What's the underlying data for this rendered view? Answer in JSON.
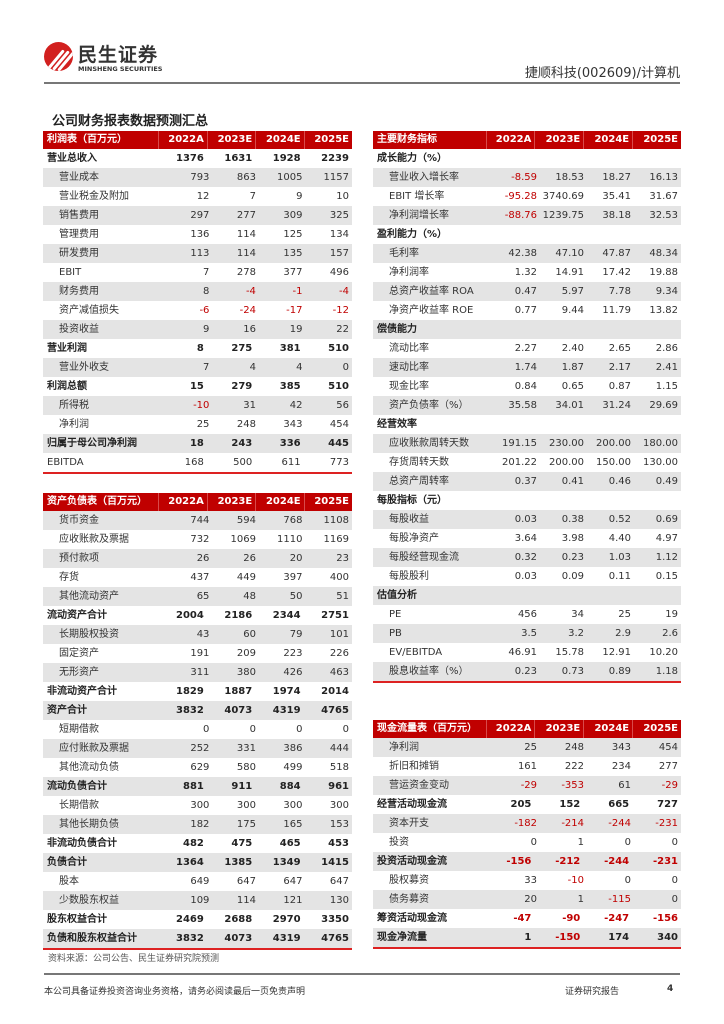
{
  "header": {
    "logo_cn": "民生证券",
    "logo_en": "MINSHENG SECURITIES",
    "stock": "捷顺科技(002609)/计算机"
  },
  "title": "公司财务报表数据预测汇总",
  "colors": {
    "accent": "#c00000",
    "stripe": "#e4e4e4",
    "negative": "#c00000"
  },
  "income": {
    "header": [
      "利润表（百万元）",
      "2022A",
      "2023E",
      "2024E",
      "2025E"
    ],
    "rows": [
      {
        "label": "营业总收入",
        "bold": true,
        "values": [
          "1376",
          "1631",
          "1928",
          "2239"
        ]
      },
      {
        "label": "营业成本",
        "values": [
          "793",
          "863",
          "1005",
          "1157"
        ]
      },
      {
        "label": "营业税金及附加",
        "values": [
          "12",
          "7",
          "9",
          "10"
        ]
      },
      {
        "label": "销售费用",
        "values": [
          "297",
          "277",
          "309",
          "325"
        ]
      },
      {
        "label": "管理费用",
        "values": [
          "136",
          "114",
          "125",
          "134"
        ]
      },
      {
        "label": "研发费用",
        "values": [
          "113",
          "114",
          "135",
          "157"
        ]
      },
      {
        "label": "EBIT",
        "values": [
          "7",
          "278",
          "377",
          "496"
        ]
      },
      {
        "label": "财务费用",
        "values": [
          "8",
          "-4",
          "-1",
          "-4"
        ]
      },
      {
        "label": "资产减值损失",
        "values": [
          "-6",
          "-24",
          "-17",
          "-12"
        ]
      },
      {
        "label": "投资收益",
        "values": [
          "9",
          "16",
          "19",
          "22"
        ]
      },
      {
        "label": "营业利润",
        "bold": true,
        "values": [
          "8",
          "275",
          "381",
          "510"
        ]
      },
      {
        "label": "营业外收支",
        "values": [
          "7",
          "4",
          "4",
          "0"
        ]
      },
      {
        "label": "利润总额",
        "bold": true,
        "values": [
          "15",
          "279",
          "385",
          "510"
        ]
      },
      {
        "label": "所得税",
        "values": [
          "-10",
          "31",
          "42",
          "56"
        ]
      },
      {
        "label": "净利润",
        "values": [
          "25",
          "248",
          "343",
          "454"
        ]
      },
      {
        "label": "归属于母公司净利润",
        "bold": true,
        "values": [
          "18",
          "243",
          "336",
          "445"
        ]
      },
      {
        "label": "EBITDA",
        "flat": true,
        "values": [
          "168",
          "500",
          "611",
          "773"
        ]
      }
    ]
  },
  "balance": {
    "header": [
      "资产负债表（百万元）",
      "2022A",
      "2023E",
      "2024E",
      "2025E"
    ],
    "rows": [
      {
        "label": "货币资金",
        "values": [
          "744",
          "594",
          "768",
          "1108"
        ]
      },
      {
        "label": "应收账款及票据",
        "values": [
          "732",
          "1069",
          "1110",
          "1169"
        ]
      },
      {
        "label": "预付款项",
        "values": [
          "26",
          "26",
          "20",
          "23"
        ]
      },
      {
        "label": "存货",
        "values": [
          "437",
          "449",
          "397",
          "400"
        ]
      },
      {
        "label": "其他流动资产",
        "values": [
          "65",
          "48",
          "50",
          "51"
        ]
      },
      {
        "label": "流动资产合计",
        "bold": true,
        "values": [
          "2004",
          "2186",
          "2344",
          "2751"
        ]
      },
      {
        "label": "长期股权投资",
        "values": [
          "43",
          "60",
          "79",
          "101"
        ]
      },
      {
        "label": "固定资产",
        "values": [
          "191",
          "209",
          "223",
          "226"
        ]
      },
      {
        "label": "无形资产",
        "values": [
          "311",
          "380",
          "426",
          "463"
        ]
      },
      {
        "label": "非流动资产合计",
        "bold": true,
        "values": [
          "1829",
          "1887",
          "1974",
          "2014"
        ]
      },
      {
        "label": "资产合计",
        "bold": true,
        "values": [
          "3832",
          "4073",
          "4319",
          "4765"
        ]
      },
      {
        "label": "短期借款",
        "values": [
          "0",
          "0",
          "0",
          "0"
        ]
      },
      {
        "label": "应付账款及票据",
        "values": [
          "252",
          "331",
          "386",
          "444"
        ]
      },
      {
        "label": "其他流动负债",
        "values": [
          "629",
          "580",
          "499",
          "518"
        ]
      },
      {
        "label": "流动负债合计",
        "bold": true,
        "values": [
          "881",
          "911",
          "884",
          "961"
        ]
      },
      {
        "label": "长期借款",
        "values": [
          "300",
          "300",
          "300",
          "300"
        ]
      },
      {
        "label": "其他长期负债",
        "values": [
          "182",
          "175",
          "165",
          "153"
        ]
      },
      {
        "label": "非流动负债合计",
        "bold": true,
        "values": [
          "482",
          "475",
          "465",
          "453"
        ]
      },
      {
        "label": "负债合计",
        "bold": true,
        "values": [
          "1364",
          "1385",
          "1349",
          "1415"
        ]
      },
      {
        "label": "股本",
        "values": [
          "649",
          "647",
          "647",
          "647"
        ]
      },
      {
        "label": "少数股东权益",
        "values": [
          "109",
          "114",
          "121",
          "130"
        ]
      },
      {
        "label": "股东权益合计",
        "bold": true,
        "values": [
          "2469",
          "2688",
          "2970",
          "3350"
        ]
      },
      {
        "label": "负债和股东权益合计",
        "bold": true,
        "values": [
          "3832",
          "4073",
          "4319",
          "4765"
        ]
      }
    ]
  },
  "indicators": {
    "header": [
      "主要财务指标",
      "2022A",
      "2023E",
      "2024E",
      "2025E"
    ],
    "rows": [
      {
        "label": "成长能力（%）",
        "bold": true,
        "values": []
      },
      {
        "label": "营业收入增长率",
        "values": [
          "-8.59",
          "18.53",
          "18.27",
          "16.13"
        ]
      },
      {
        "label": "EBIT 增长率",
        "values": [
          "-95.28",
          "3740.69",
          "35.41",
          "31.67"
        ]
      },
      {
        "label": "净利润增长率",
        "values": [
          "-88.76",
          "1239.75",
          "38.18",
          "32.53"
        ]
      },
      {
        "label": "盈利能力（%）",
        "bold": true,
        "values": []
      },
      {
        "label": "毛利率",
        "values": [
          "42.38",
          "47.10",
          "47.87",
          "48.34"
        ]
      },
      {
        "label": "净利润率",
        "values": [
          "1.32",
          "14.91",
          "17.42",
          "19.88"
        ]
      },
      {
        "label": "总资产收益率 ROA",
        "values": [
          "0.47",
          "5.97",
          "7.78",
          "9.34"
        ]
      },
      {
        "label": "净资产收益率 ROE",
        "values": [
          "0.77",
          "9.44",
          "11.79",
          "13.82"
        ]
      },
      {
        "label": "偿债能力",
        "bold": true,
        "values": []
      },
      {
        "label": "流动比率",
        "values": [
          "2.27",
          "2.40",
          "2.65",
          "2.86"
        ]
      },
      {
        "label": "速动比率",
        "values": [
          "1.74",
          "1.87",
          "2.17",
          "2.41"
        ]
      },
      {
        "label": "现金比率",
        "values": [
          "0.84",
          "0.65",
          "0.87",
          "1.15"
        ]
      },
      {
        "label": "资产负债率（%）",
        "values": [
          "35.58",
          "34.01",
          "31.24",
          "29.69"
        ]
      },
      {
        "label": "经营效率",
        "bold": true,
        "values": []
      },
      {
        "label": "应收账款周转天数",
        "values": [
          "191.15",
          "230.00",
          "200.00",
          "180.00"
        ]
      },
      {
        "label": "存货周转天数",
        "values": [
          "201.22",
          "200.00",
          "150.00",
          "130.00"
        ]
      },
      {
        "label": "总资产周转率",
        "values": [
          "0.37",
          "0.41",
          "0.46",
          "0.49"
        ]
      },
      {
        "label": "每股指标（元）",
        "bold": true,
        "values": []
      },
      {
        "label": "每股收益",
        "values": [
          "0.03",
          "0.38",
          "0.52",
          "0.69"
        ]
      },
      {
        "label": "每股净资产",
        "values": [
          "3.64",
          "3.98",
          "4.40",
          "4.97"
        ]
      },
      {
        "label": "每股经营现金流",
        "values": [
          "0.32",
          "0.23",
          "1.03",
          "1.12"
        ]
      },
      {
        "label": "每股股利",
        "values": [
          "0.03",
          "0.09",
          "0.11",
          "0.15"
        ]
      },
      {
        "label": "估值分析",
        "bold": true,
        "values": []
      },
      {
        "label": "PE",
        "values": [
          "456",
          "34",
          "25",
          "19"
        ]
      },
      {
        "label": "PB",
        "values": [
          "3.5",
          "3.2",
          "2.9",
          "2.6"
        ]
      },
      {
        "label": "EV/EBITDA",
        "values": [
          "46.91",
          "15.78",
          "12.91",
          "10.20"
        ]
      },
      {
        "label": "股息收益率（%）",
        "values": [
          "0.23",
          "0.73",
          "0.89",
          "1.18"
        ]
      }
    ]
  },
  "cashflow": {
    "header": [
      "现金流量表（百万元）",
      "2022A",
      "2023E",
      "2024E",
      "2025E"
    ],
    "rows": [
      {
        "label": "净利润",
        "values": [
          "25",
          "248",
          "343",
          "454"
        ]
      },
      {
        "label": "折旧和摊销",
        "values": [
          "161",
          "222",
          "234",
          "277"
        ]
      },
      {
        "label": "营运资金变动",
        "values": [
          "-29",
          "-353",
          "61",
          "-29"
        ]
      },
      {
        "label": "经营活动现金流",
        "bold": true,
        "values": [
          "205",
          "152",
          "665",
          "727"
        ]
      },
      {
        "label": "资本开支",
        "values": [
          "-182",
          "-214",
          "-244",
          "-231"
        ]
      },
      {
        "label": "投资",
        "values": [
          "0",
          "1",
          "0",
          "0"
        ]
      },
      {
        "label": "投资活动现金流",
        "bold": true,
        "values": [
          "-156",
          "-212",
          "-244",
          "-231"
        ]
      },
      {
        "label": "股权募资",
        "values": [
          "33",
          "-10",
          "0",
          "0"
        ]
      },
      {
        "label": "债务募资",
        "values": [
          "20",
          "1",
          "-115",
          "0"
        ]
      },
      {
        "label": "筹资活动现金流",
        "bold": true,
        "values": [
          "-47",
          "-90",
          "-247",
          "-156"
        ]
      },
      {
        "label": "现金净流量",
        "bold": true,
        "values": [
          "1",
          "-150",
          "174",
          "340"
        ]
      }
    ]
  },
  "source": "资料来源：公司公告、民生证券研究院预测",
  "footer": {
    "disclaimer": "本公司具备证券投资咨询业务资格，请务必阅读最后一页免责声明",
    "report_type": "证券研究报告",
    "page": "4"
  }
}
